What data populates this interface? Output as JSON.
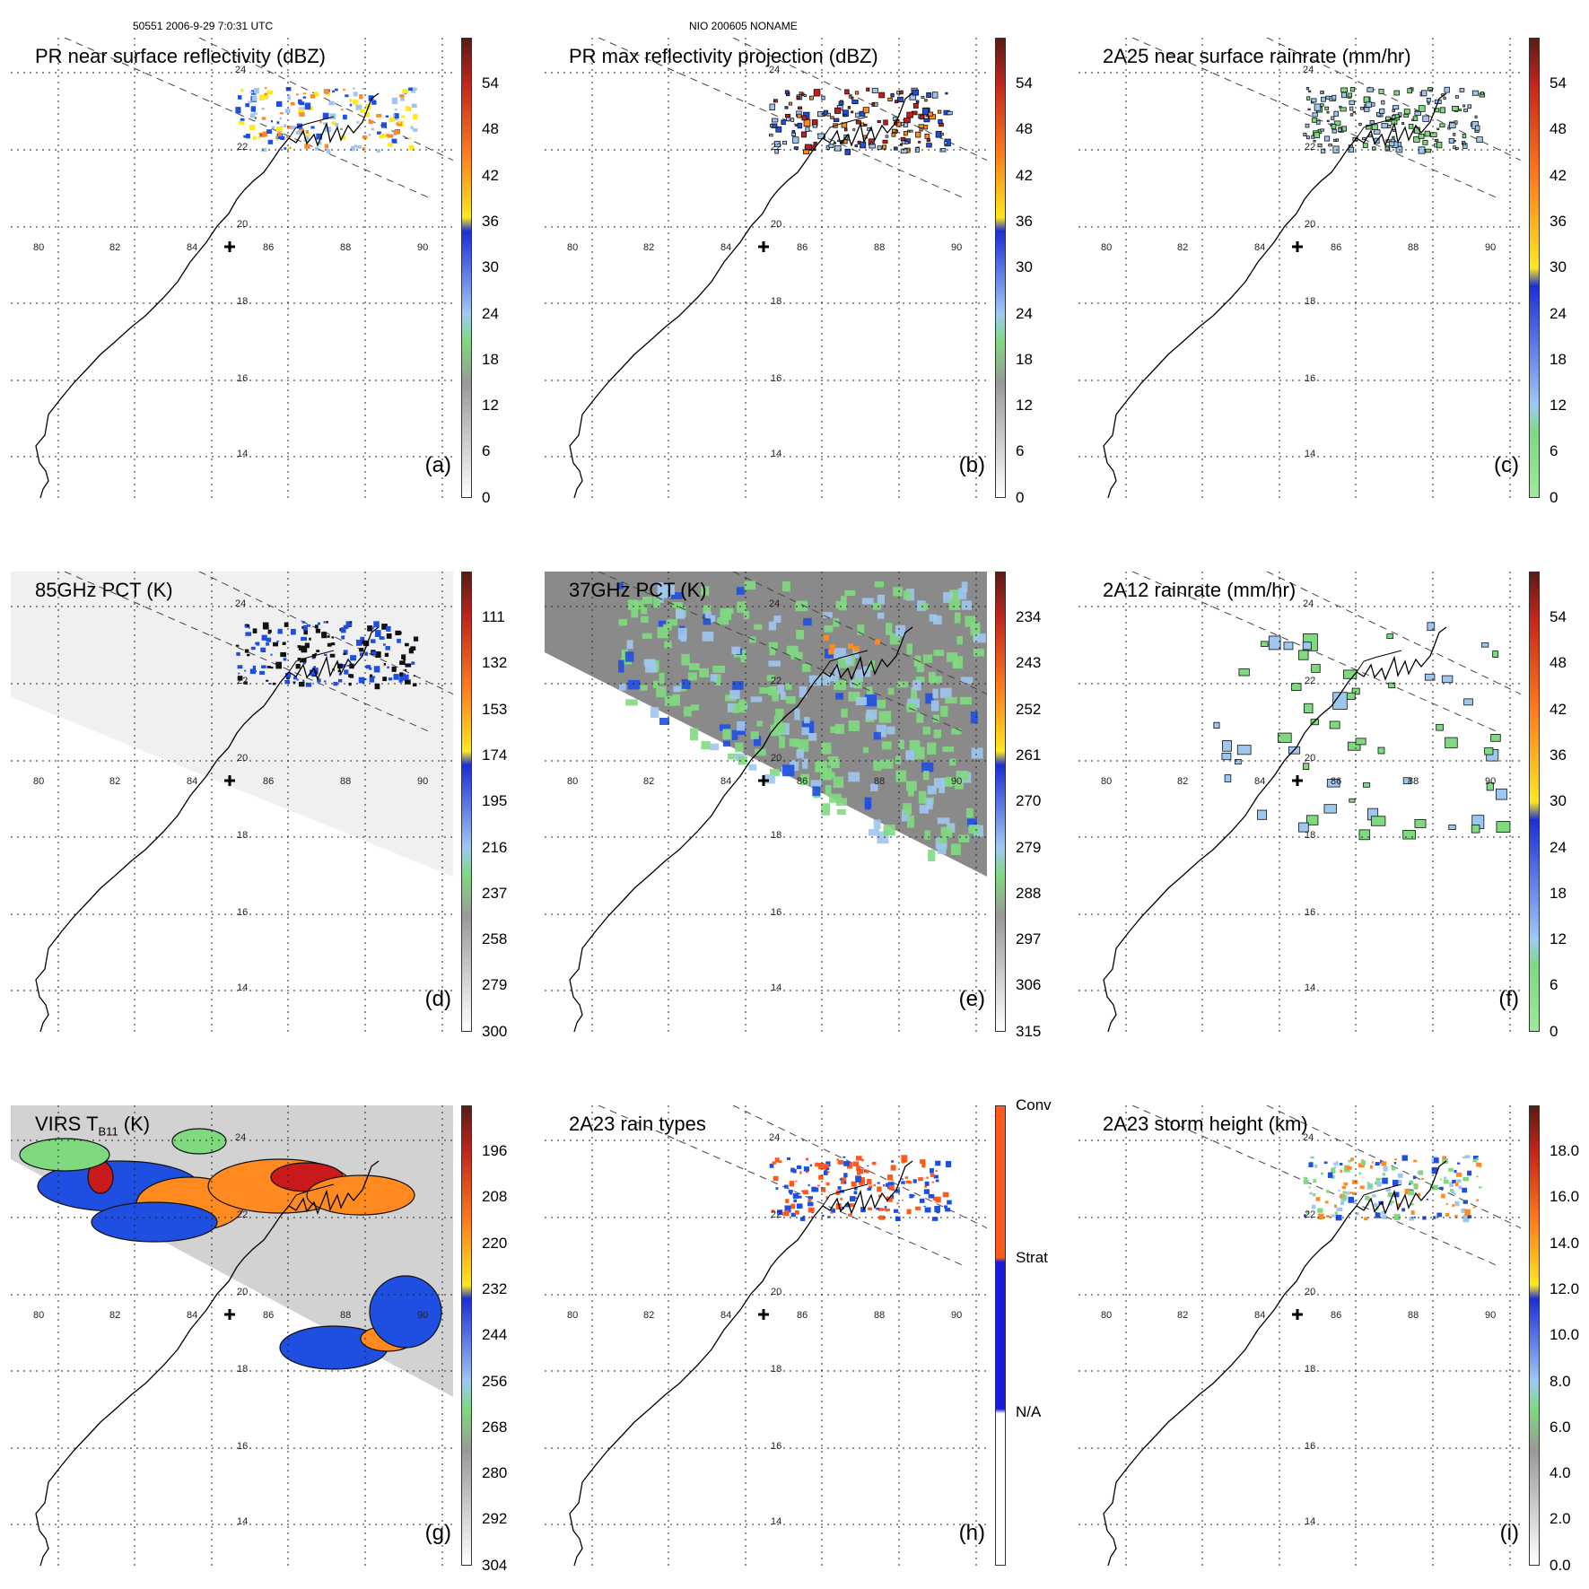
{
  "header": {
    "orbit_time": "50551 2006-9-29 7:0:31 UTC",
    "storm": "NIO 200605 NONAME"
  },
  "axes": {
    "longitude_ticks": [
      "80",
      "82",
      "84",
      "86",
      "88",
      "90"
    ],
    "latitude_ticks": [
      "24",
      "22",
      "20",
      "18",
      "16",
      "14"
    ]
  },
  "colors": {
    "grid": "#222222",
    "swath_edge": "#444444",
    "rain_green": "#7fd97f",
    "rain_lightblue": "#9ec6ee",
    "rain_blue": "#1f4fe0",
    "rain_orange": "#ff8a1f",
    "rain_red": "#c81a1a",
    "bg_gray": "#e8e8e8"
  },
  "panels": [
    {
      "id": "a",
      "title": "PR near surface reflectivity (dBZ)",
      "letter": "(a)",
      "colorbar_labels": [
        "54",
        "48",
        "42",
        "36",
        "30",
        "24",
        "18",
        "12",
        "6",
        "0"
      ],
      "colorbar": [
        [
          "#5a1b14",
          0
        ],
        [
          "#c3261c",
          0.1
        ],
        [
          "#ff7b1c",
          0.25
        ],
        [
          "#ffe81c",
          0.39
        ],
        [
          "#1a2fd6",
          0.42
        ],
        [
          "#9fc9f5",
          0.6
        ],
        [
          "#7fd97f",
          0.66
        ],
        [
          "#999999",
          0.75
        ],
        [
          "#ffffff",
          1
        ]
      ]
    },
    {
      "id": "b",
      "title": "PR max reflectivity projection (dBZ)",
      "letter": "(b)",
      "colorbar_labels": [
        "54",
        "48",
        "42",
        "36",
        "30",
        "24",
        "18",
        "12",
        "6",
        "0"
      ],
      "colorbar": [
        [
          "#5a1b14",
          0
        ],
        [
          "#c3261c",
          0.1
        ],
        [
          "#ff7b1c",
          0.25
        ],
        [
          "#ffe81c",
          0.39
        ],
        [
          "#1a2fd6",
          0.42
        ],
        [
          "#9fc9f5",
          0.6
        ],
        [
          "#7fd97f",
          0.66
        ],
        [
          "#999999",
          0.75
        ],
        [
          "#ffffff",
          1
        ]
      ]
    },
    {
      "id": "c",
      "title": "2A25 near surface rainrate (mm/hr)",
      "letter": "(c)",
      "colorbar_labels": [
        "54",
        "48",
        "42",
        "36",
        "30",
        "24",
        "18",
        "12",
        "6",
        "0"
      ],
      "colorbar": [
        [
          "#5a1b14",
          0
        ],
        [
          "#c3261c",
          0.1
        ],
        [
          "#ff7b1c",
          0.3
        ],
        [
          "#ffe81c",
          0.5
        ],
        [
          "#1a2fd6",
          0.54
        ],
        [
          "#9fc9f5",
          0.8
        ],
        [
          "#7fd97f",
          0.86
        ],
        [
          "#9fe89f",
          1
        ]
      ]
    },
    {
      "id": "d",
      "title": "85GHz PCT (K)",
      "letter": "(d)",
      "colorbar_labels": [
        "111",
        "132",
        "153",
        "174",
        "195",
        "216",
        "237",
        "258",
        "279",
        "300"
      ],
      "colorbar": [
        [
          "#5a1b14",
          0
        ],
        [
          "#c3261c",
          0.1
        ],
        [
          "#ff7b1c",
          0.25
        ],
        [
          "#ffe81c",
          0.39
        ],
        [
          "#1a2fd6",
          0.42
        ],
        [
          "#9fc9f5",
          0.6
        ],
        [
          "#7fd97f",
          0.66
        ],
        [
          "#999999",
          0.75
        ],
        [
          "#ffffff",
          1
        ]
      ]
    },
    {
      "id": "e",
      "title": "37GHz PCT (K)",
      "letter": "(e)",
      "colorbar_labels": [
        "234",
        "243",
        "252",
        "261",
        "270",
        "279",
        "288",
        "297",
        "306",
        "315"
      ],
      "colorbar": [
        [
          "#5a1b14",
          0
        ],
        [
          "#c3261c",
          0.1
        ],
        [
          "#ff7b1c",
          0.25
        ],
        [
          "#ffe81c",
          0.39
        ],
        [
          "#1a2fd6",
          0.42
        ],
        [
          "#9fc9f5",
          0.6
        ],
        [
          "#7fd97f",
          0.66
        ],
        [
          "#999999",
          0.75
        ],
        [
          "#ffffff",
          1
        ]
      ]
    },
    {
      "id": "f",
      "title": "2A12 rainrate (mm/hr)",
      "letter": "(f)",
      "colorbar_labels": [
        "54",
        "48",
        "42",
        "36",
        "30",
        "24",
        "18",
        "12",
        "6",
        "0"
      ],
      "colorbar": [
        [
          "#5a1b14",
          0
        ],
        [
          "#c3261c",
          0.1
        ],
        [
          "#ff7b1c",
          0.3
        ],
        [
          "#ffe81c",
          0.5
        ],
        [
          "#1a2fd6",
          0.54
        ],
        [
          "#9fc9f5",
          0.8
        ],
        [
          "#7fd97f",
          0.86
        ],
        [
          "#9fe89f",
          1
        ]
      ]
    },
    {
      "id": "g",
      "title": "VIRS T",
      "title_subscript": "B11",
      "title_suffix": " (K)",
      "letter": "(g)",
      "colorbar_labels": [
        "196",
        "208",
        "220",
        "232",
        "244",
        "256",
        "268",
        "280",
        "292",
        "304"
      ],
      "colorbar": [
        [
          "#5a1b14",
          0
        ],
        [
          "#c3261c",
          0.1
        ],
        [
          "#ff7b1c",
          0.25
        ],
        [
          "#ffe81c",
          0.39
        ],
        [
          "#1a2fd6",
          0.42
        ],
        [
          "#9fc9f5",
          0.6
        ],
        [
          "#7fd97f",
          0.66
        ],
        [
          "#999999",
          0.75
        ],
        [
          "#ffffff",
          1
        ]
      ]
    },
    {
      "id": "h",
      "title": "2A23 rain types",
      "letter": "(h)",
      "colorbar_labels": [
        "Conv",
        "Strat",
        "N/A"
      ],
      "colorbar": [
        [
          "#ff5a1c",
          0
        ],
        [
          "#ff5a1c",
          0.33
        ],
        [
          "#1a1ae0",
          0.34
        ],
        [
          "#1a1ae0",
          0.66
        ],
        [
          "#ffffff",
          0.67
        ],
        [
          "#ffffff",
          1
        ]
      ]
    },
    {
      "id": "i",
      "title": "2A23 storm height (km)",
      "letter": "(i)",
      "colorbar_labels": [
        "18.0",
        "16.0",
        "14.0",
        "12.0",
        "10.0",
        "8.0",
        "6.0",
        "4.0",
        "2.0",
        "0.0"
      ],
      "colorbar": [
        [
          "#5a1b14",
          0
        ],
        [
          "#c3261c",
          0.1
        ],
        [
          "#ff7b1c",
          0.25
        ],
        [
          "#ffe81c",
          0.39
        ],
        [
          "#1a2fd6",
          0.42
        ],
        [
          "#9fc9f5",
          0.6
        ],
        [
          "#7fd97f",
          0.66
        ],
        [
          "#999999",
          0.75
        ],
        [
          "#ffffff",
          1
        ]
      ]
    }
  ]
}
